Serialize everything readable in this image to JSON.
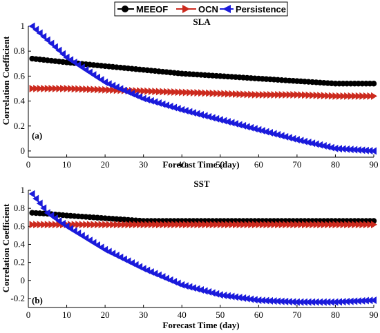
{
  "legend": {
    "entries": [
      {
        "label": "MEEOF",
        "color": "#000000",
        "marker": "circle"
      },
      {
        "label": "OCN",
        "color": "#cc2a1e",
        "marker": "triangle-right"
      },
      {
        "label": "Persistence",
        "color": "#1a1adb",
        "marker": "triangle-left"
      }
    ]
  },
  "chart_data": [
    {
      "type": "line",
      "title": "SLA",
      "panel_label": "(a)",
      "xlabel": "Forecast Time (day)",
      "ylabel": "Correlation Coefficient",
      "xlim": [
        0,
        90
      ],
      "ylim": [
        -0.05,
        1.0
      ],
      "xticks": [
        0,
        10,
        20,
        30,
        40,
        50,
        60,
        70,
        80,
        90
      ],
      "yticks": [
        0,
        0.2,
        0.4,
        0.6,
        0.8,
        1
      ],
      "x": [
        1,
        10,
        20,
        30,
        40,
        50,
        60,
        70,
        80,
        90
      ],
      "series": [
        {
          "name": "MEEOF",
          "values": [
            0.74,
            0.71,
            0.68,
            0.65,
            0.62,
            0.6,
            0.58,
            0.56,
            0.54,
            0.54
          ]
        },
        {
          "name": "OCN",
          "values": [
            0.5,
            0.5,
            0.49,
            0.48,
            0.47,
            0.46,
            0.45,
            0.45,
            0.44,
            0.44
          ]
        },
        {
          "name": "Persistence",
          "values": [
            1.0,
            0.75,
            0.55,
            0.42,
            0.33,
            0.25,
            0.17,
            0.09,
            0.02,
            0.0
          ]
        }
      ],
      "grid": false
    },
    {
      "type": "line",
      "title": "SST",
      "panel_label": "(b)",
      "xlabel": "Forecast Time (day)",
      "ylabel": "Correlation Coefficient",
      "xlim": [
        0,
        90
      ],
      "ylim": [
        -0.3,
        1.0
      ],
      "xticks": [
        0,
        10,
        20,
        30,
        40,
        50,
        60,
        70,
        80,
        90
      ],
      "yticks": [
        -0.2,
        0,
        0.2,
        0.4,
        0.6,
        0.8,
        1
      ],
      "x": [
        1,
        5,
        10,
        20,
        30,
        40,
        50,
        60,
        70,
        80,
        90
      ],
      "series": [
        {
          "name": "MEEOF",
          "values": [
            0.75,
            0.74,
            0.72,
            0.69,
            0.66,
            0.66,
            0.66,
            0.66,
            0.66,
            0.66,
            0.66
          ]
        },
        {
          "name": "OCN",
          "values": [
            0.62,
            0.62,
            0.62,
            0.62,
            0.62,
            0.62,
            0.62,
            0.62,
            0.62,
            0.62,
            0.62
          ]
        },
        {
          "name": "Persistence",
          "values": [
            0.96,
            0.75,
            0.6,
            0.34,
            0.13,
            -0.05,
            -0.16,
            -0.22,
            -0.24,
            -0.24,
            -0.22
          ]
        }
      ],
      "grid": false
    }
  ]
}
